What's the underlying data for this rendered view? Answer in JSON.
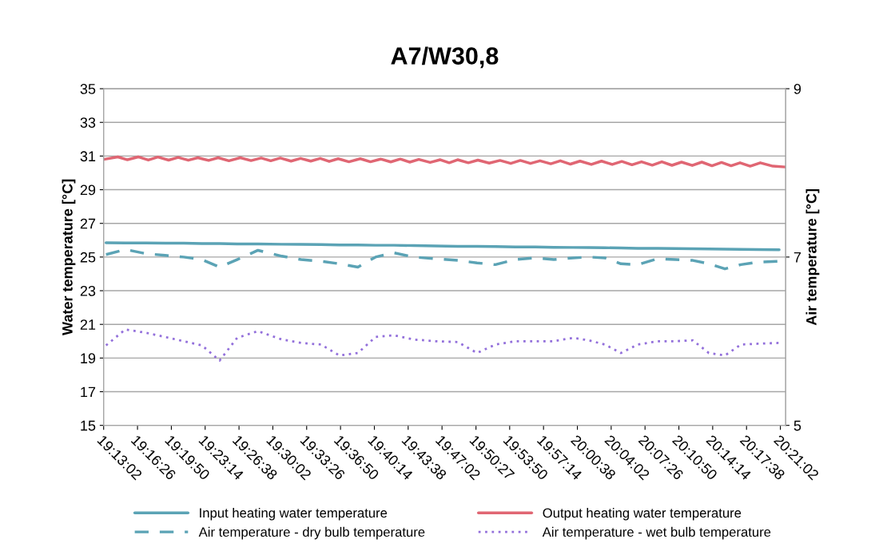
{
  "chart_data": {
    "type": "line",
    "title": "A7/W30,8",
    "ylabel": "Water temperature [°C]",
    "y2label": "Air temperature [°C]",
    "xlim": [
      19.2172,
      20.3594
    ],
    "xticks": [
      {
        "value": 19.2172,
        "label": "19:13:02"
      },
      {
        "value": 19.2739,
        "label": "19:16:26"
      },
      {
        "value": 19.3306,
        "label": "19:19:50"
      },
      {
        "value": 19.3872,
        "label": "19:23:14"
      },
      {
        "value": 19.4439,
        "label": "19:26:38"
      },
      {
        "value": 19.5006,
        "label": "19:30:02"
      },
      {
        "value": 19.5572,
        "label": "19:33:26"
      },
      {
        "value": 19.6139,
        "label": "19:36:50"
      },
      {
        "value": 19.6706,
        "label": "19:40:14"
      },
      {
        "value": 19.7272,
        "label": "19:43:38"
      },
      {
        "value": 19.7839,
        "label": "19:47:02"
      },
      {
        "value": 19.8408,
        "label": "19:50:27"
      },
      {
        "value": 19.8972,
        "label": "19:53:50"
      },
      {
        "value": 19.9539,
        "label": "19:57:14"
      },
      {
        "value": 20.0106,
        "label": "20:00:38"
      },
      {
        "value": 20.0672,
        "label": "20:04:02"
      },
      {
        "value": 20.1239,
        "label": "20:07:26"
      },
      {
        "value": 20.1806,
        "label": "20:10:50"
      },
      {
        "value": 20.2372,
        "label": "20:14:14"
      },
      {
        "value": 20.2939,
        "label": "20:17:38"
      },
      {
        "value": 20.3506,
        "label": "20:21:02"
      }
    ],
    "ylim": [
      15,
      35
    ],
    "yticks": [
      15,
      17,
      19,
      21,
      23,
      25,
      27,
      29,
      31,
      33,
      35
    ],
    "y2lim": [
      5,
      9
    ],
    "y2ticks": [
      5,
      7,
      9
    ],
    "x": [
      19.2212,
      19.2534,
      19.2882,
      19.3203,
      19.3511,
      19.3819,
      19.4114,
      19.4408,
      19.4756,
      19.5158,
      19.5479,
      19.5814,
      19.6122,
      19.643,
      19.6725,
      19.7033,
      19.7367,
      19.7729,
      19.8104,
      19.8425,
      19.8733,
      19.9068,
      19.9403,
      19.9711,
      20.0032,
      20.03,
      20.0568,
      20.0835,
      20.1117,
      20.1451,
      20.1746,
      20.204,
      20.2308,
      20.2576,
      20.2844,
      20.3125,
      20.3486
    ],
    "grid": "y",
    "legend": "bottom",
    "series": [
      {
        "name": "Input heating water temperature",
        "color": "#5ba3b5",
        "line_style": "solid",
        "values": [
          25.85,
          25.84,
          25.84,
          25.82,
          25.82,
          25.8,
          25.8,
          25.78,
          25.78,
          25.76,
          25.75,
          25.74,
          25.72,
          25.72,
          25.7,
          25.7,
          25.68,
          25.66,
          25.64,
          25.64,
          25.62,
          25.6,
          25.6,
          25.58,
          25.57,
          25.56,
          25.55,
          25.54,
          25.52,
          25.52,
          25.5,
          25.49,
          25.48,
          25.47,
          25.46,
          25.45,
          25.43
        ]
      },
      {
        "name": "Output heating water temperature",
        "color": "#e06673",
        "line_style": "solid",
        "x": [
          19.2172,
          19.241,
          19.257,
          19.275,
          19.292,
          19.308,
          19.326,
          19.342,
          19.359,
          19.375,
          19.393,
          19.409,
          19.427,
          19.446,
          19.464,
          19.481,
          19.497,
          19.513,
          19.531,
          19.547,
          19.564,
          19.58,
          19.595,
          19.61,
          19.628,
          19.647,
          19.664,
          19.681,
          19.698,
          19.714,
          19.73,
          19.745,
          19.764,
          19.781,
          19.796,
          19.81,
          19.828,
          19.844,
          19.863,
          19.881,
          19.899,
          19.915,
          19.932,
          19.948,
          19.966,
          19.982,
          19.999,
          20.015,
          20.034,
          20.051,
          20.069,
          20.085,
          20.102,
          20.118,
          20.136,
          20.152,
          20.169,
          20.185,
          20.203,
          20.219,
          20.236,
          20.252,
          20.268,
          20.283,
          20.3,
          20.317,
          20.338,
          20.359
        ],
        "values": [
          30.8,
          30.95,
          30.78,
          30.95,
          30.76,
          30.94,
          30.76,
          30.92,
          30.75,
          30.9,
          30.74,
          30.9,
          30.72,
          30.9,
          30.73,
          30.88,
          30.72,
          30.88,
          30.7,
          30.86,
          30.7,
          30.86,
          30.68,
          30.84,
          30.66,
          30.84,
          30.66,
          30.82,
          30.65,
          30.82,
          30.64,
          30.8,
          30.62,
          30.78,
          30.6,
          30.78,
          30.6,
          30.76,
          30.58,
          30.74,
          30.56,
          30.74,
          30.56,
          30.72,
          30.54,
          30.72,
          30.52,
          30.7,
          30.5,
          30.7,
          30.5,
          30.68,
          30.48,
          30.66,
          30.46,
          30.66,
          30.45,
          30.64,
          30.44,
          30.64,
          30.42,
          30.62,
          30.42,
          30.6,
          30.4,
          30.6,
          30.4,
          30.35
        ]
      },
      {
        "name": "Air temperature - dry bulb temperature",
        "color": "#5ba3b5",
        "line_style": "dashed",
        "axis": "y2",
        "values": [
          7.03,
          7.09,
          7.04,
          7.02,
          7.0,
          6.97,
          6.88,
          6.97,
          7.08,
          7.01,
          6.97,
          6.95,
          6.92,
          6.88,
          7.0,
          7.05,
          7.0,
          6.98,
          6.96,
          6.93,
          6.91,
          6.97,
          6.99,
          6.97,
          6.99,
          7.0,
          6.99,
          6.92,
          6.91,
          6.98,
          6.97,
          6.96,
          6.92,
          6.86,
          6.91,
          6.94,
          6.95
        ]
      },
      {
        "name": "Air temperature - wet bulb temperature",
        "color": "#9370db",
        "line_style": "dotted",
        "axis": "y2",
        "values": [
          5.95,
          6.14,
          6.1,
          6.05,
          6.0,
          5.95,
          5.77,
          6.04,
          6.12,
          6.02,
          5.98,
          5.96,
          5.83,
          5.86,
          6.05,
          6.07,
          6.02,
          6.0,
          5.99,
          5.86,
          5.96,
          6.0,
          6.0,
          6.0,
          6.04,
          6.01,
          5.96,
          5.86,
          5.96,
          6.0,
          6.0,
          6.01,
          5.86,
          5.83,
          5.96,
          5.97,
          5.98
        ]
      }
    ]
  }
}
